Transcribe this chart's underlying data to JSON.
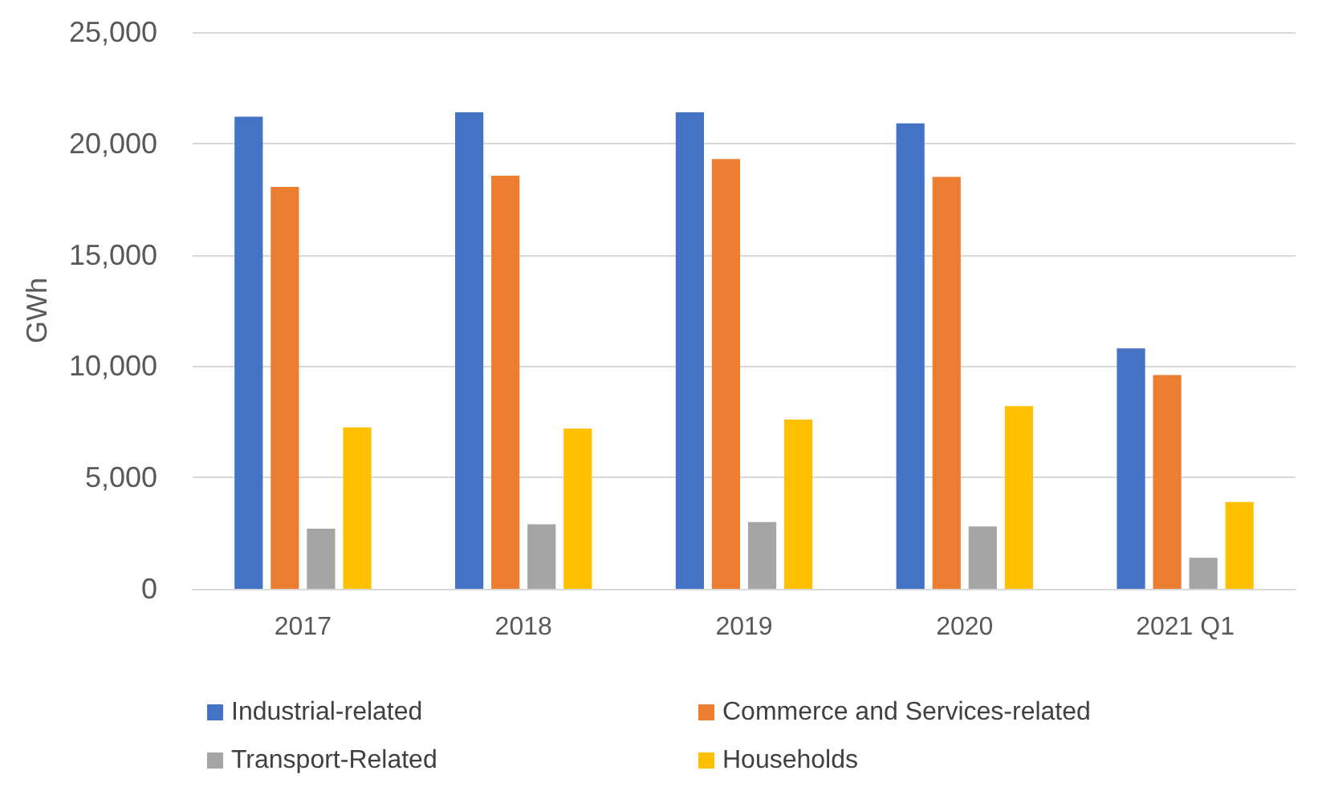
{
  "chart_data": {
    "type": "bar",
    "ylabel": "GWh",
    "categories": [
      "2017",
      "2018",
      "2019",
      "2020",
      "2021 Q1"
    ],
    "series": [
      {
        "name": "Industrial-related",
        "color": "#4472c4",
        "values": [
          21200,
          21400,
          21400,
          20900,
          10800
        ]
      },
      {
        "name": "Commerce and Services-related",
        "color": "#ed7d31",
        "values": [
          18050,
          18550,
          19300,
          18500,
          9600
        ]
      },
      {
        "name": "Transport-Related",
        "color": "#a5a5a5",
        "values": [
          2700,
          2900,
          3000,
          2800,
          1400
        ]
      },
      {
        "name": "Households",
        "color": "#ffc000",
        "values": [
          7250,
          7200,
          7600,
          8200,
          3900
        ]
      }
    ],
    "ylim": [
      0,
      25000
    ],
    "yticks": [
      0,
      {
        "value": 5000,
        "label": "5,000"
      },
      {
        "value": 10000,
        "label": "10,000"
      },
      {
        "value": 15000,
        "label": "15,000"
      },
      {
        "value": 20000,
        "label": "20,000"
      },
      {
        "value": 25000,
        "label": "25,000"
      }
    ],
    "grid": "y",
    "legend": "bottom"
  }
}
